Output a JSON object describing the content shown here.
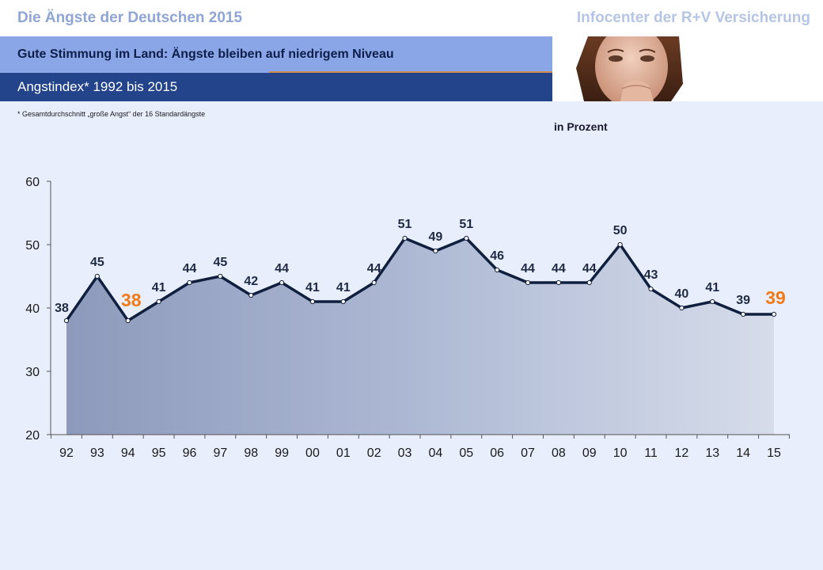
{
  "header": {
    "title": "Die Ängste der Deutschen 2015",
    "organization": "Infocenter der R+V Versicherung",
    "subtitle": "Gute Stimmung im Land: Ängste bleiben auf niedrigem Niveau",
    "index_label": "Angstindex* 1992 bis 2015"
  },
  "footnote": "*  Gesamtdurchschnitt „große Angst“ der 16 Standardängste",
  "unit": "in Prozent",
  "colors": {
    "line": "#0f1f3d",
    "area": "#a7b3cf",
    "highlight": "#f07a1a",
    "label": "#1e2a45"
  },
  "chart_data": {
    "type": "line",
    "categories": [
      "92",
      "93",
      "94",
      "95",
      "96",
      "97",
      "98",
      "99",
      "00",
      "01",
      "02",
      "03",
      "04",
      "05",
      "06",
      "07",
      "08",
      "09",
      "10",
      "11",
      "12",
      "13",
      "14",
      "15"
    ],
    "values": [
      38,
      45,
      38,
      41,
      44,
      45,
      42,
      44,
      41,
      41,
      44,
      51,
      49,
      51,
      46,
      44,
      44,
      44,
      50,
      43,
      40,
      41,
      39,
      39
    ],
    "highlighted_indices": [
      2,
      23
    ],
    "ylim": [
      20,
      60
    ],
    "yticks": [
      20,
      30,
      40,
      50,
      60
    ],
    "title": "",
    "xlabel": "",
    "ylabel": "",
    "fill_area": true
  }
}
